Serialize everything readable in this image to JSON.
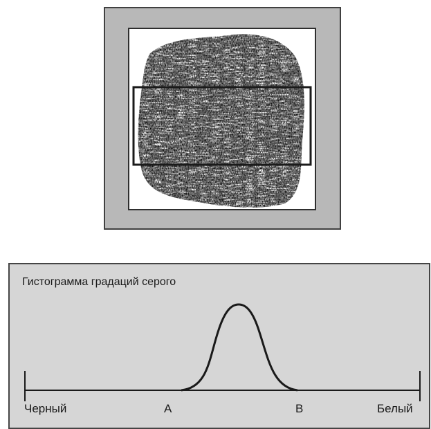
{
  "histogram": {
    "title": "Гистограмма градаций серого",
    "labels": {
      "black": "Черный",
      "a": "A",
      "b": "B",
      "white": "Белый"
    },
    "distribution": "gaussian peak between A and B"
  },
  "scanner": {
    "content": "fingerprint impression with rectangular selection region"
  },
  "colors": {
    "frame_gray": "#b8b8b8",
    "panel_gray": "#d6d6d6",
    "ink": "#1a1a1a"
  }
}
